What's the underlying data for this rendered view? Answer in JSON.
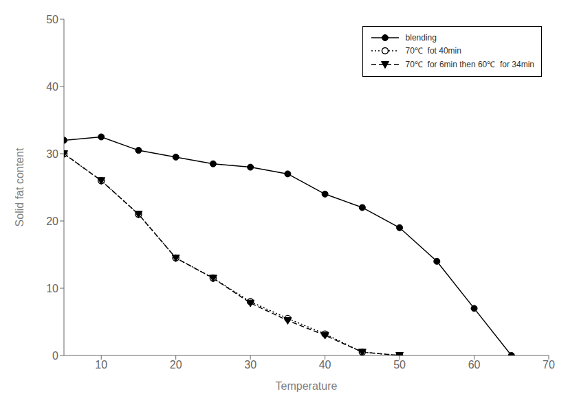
{
  "chart_data": {
    "type": "line",
    "xlabel": "Temperature",
    "ylabel": "Solid fat content",
    "xlim": [
      5,
      70
    ],
    "ylim": [
      0,
      50
    ],
    "xticks": [
      10,
      20,
      30,
      40,
      50,
      60,
      70
    ],
    "yticks": [
      0,
      10,
      20,
      30,
      40,
      50
    ],
    "grid": false,
    "legend": "upper right",
    "series": [
      {
        "name": "blending",
        "x": [
          5,
          10,
          15,
          20,
          25,
          30,
          35,
          40,
          45,
          50,
          55,
          60,
          65
        ],
        "values": [
          32,
          32.5,
          30.5,
          29.5,
          28.5,
          28,
          27,
          24,
          22,
          19,
          14,
          7,
          0
        ],
        "color": "#000000",
        "marker": "circle",
        "line_style": "solid"
      },
      {
        "name": "70℃  fot 40min",
        "x": [
          5,
          10,
          15,
          20,
          25,
          30,
          35,
          40,
          45,
          50
        ],
        "values": [
          30,
          26,
          21,
          14.5,
          11.5,
          8,
          5.5,
          3.2,
          0.5,
          0
        ],
        "color": "#000000",
        "marker": "open_circle",
        "line_style": "dotted"
      },
      {
        "name": "70℃  for 6min then 60℃  for 34min",
        "x": [
          5,
          10,
          15,
          20,
          25,
          30,
          35,
          40,
          45,
          50
        ],
        "values": [
          30,
          26,
          21,
          14.5,
          11.5,
          7.8,
          5.2,
          3.0,
          0.5,
          0
        ],
        "color": "#000000",
        "marker": "triangle_down",
        "line_style": "dashed"
      }
    ]
  }
}
